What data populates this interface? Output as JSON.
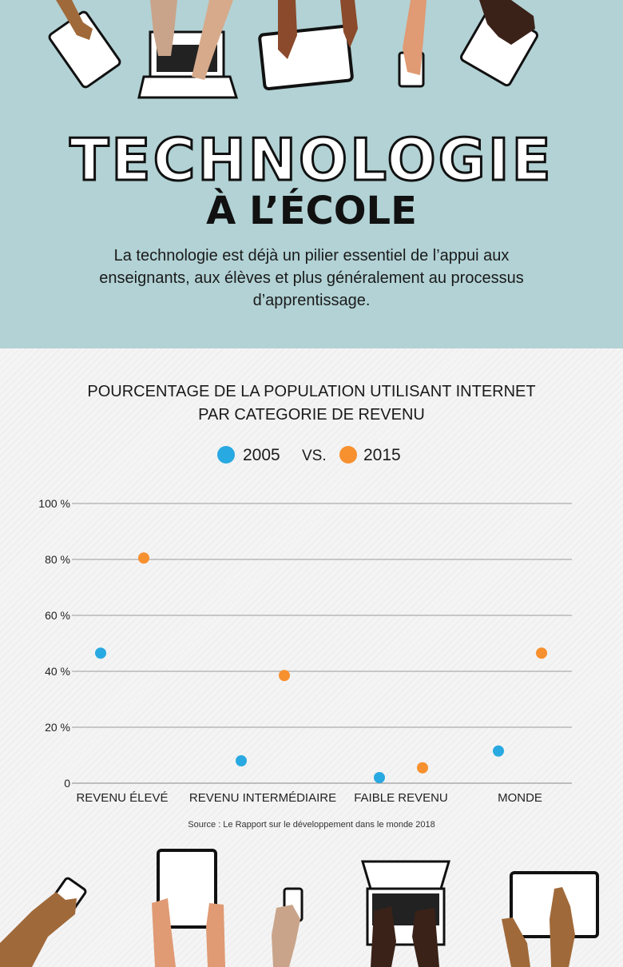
{
  "header": {
    "title_line1": "TECHNOLOGIE",
    "title_line2": "À L’ÉCOLE",
    "intro": "La technologie est déjà un pilier essentiel de l’appui aux enseignants, aux élèves et plus généralement au processus d’apprentissage."
  },
  "colors": {
    "top_bg": "#b2d2d5",
    "series_2005": "#29a9e1",
    "series_2015": "#f7902f"
  },
  "legend": {
    "item1": "2005",
    "vs": "VS.",
    "item2": "2015"
  },
  "footer": {
    "source": "Source : Le Rapport sur le développement dans le monde 2018"
  },
  "chart_data": {
    "type": "scatter",
    "title": "POURCENTAGE DE LA POPULATION UTILISANT INTERNET PAR CATEGORIE DE REVENU",
    "categories": [
      "REVENU ÉLEVÉ",
      "REVENU INTERMÉDIAIRE",
      "FAIBLE REVENU",
      "MONDE"
    ],
    "y_ticks": [
      "0",
      "20 %",
      "40 %",
      "60 %",
      "80 %",
      "100 %"
    ],
    "ylim": [
      0,
      100
    ],
    "grid": true,
    "legend_position": "top-center",
    "series": [
      {
        "name": "2005",
        "color": "#29a9e1",
        "values": [
          46.5,
          8,
          2,
          11.5
        ]
      },
      {
        "name": "2015",
        "color": "#f7902f",
        "values": [
          80.5,
          38.5,
          5.5,
          46.5
        ]
      }
    ]
  }
}
